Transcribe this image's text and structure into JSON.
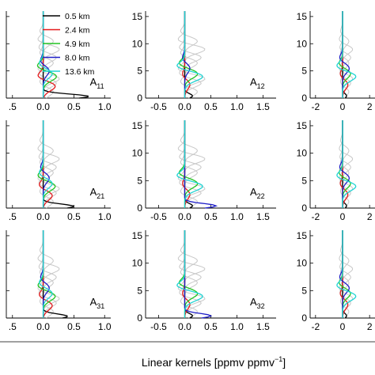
{
  "figure": {
    "xlabel": "Linear kernels [ppmv ppmv",
    "xlabel_sup": "−1",
    "xlabel_end": "]",
    "ylabel_note": ""
  },
  "legend": {
    "entries": [
      {
        "label": "0.5 km",
        "color": "#000000"
      },
      {
        "label": "2.4 km",
        "color": "#e41a1c"
      },
      {
        "label": "4.9 km",
        "color": "#22c422"
      },
      {
        "label": "8.0 km",
        "color": "#1f1fc8"
      },
      {
        "label": "13.6 km",
        "color": "#20d4d4"
      }
    ],
    "faint_color": "#c8c8c8"
  },
  "chart_data": [
    {
      "type": "line",
      "panel": "A11",
      "label_main": "A",
      "label_sub": "11",
      "xlim": [
        -0.6,
        1.1
      ],
      "ylim": [
        0,
        16
      ],
      "xticks": [
        ".5",
        "0.0",
        "0.5",
        "1.0"
      ],
      "yticks": [
        "0",
        "5",
        "10",
        "15"
      ],
      "show_yticks": false,
      "series": [
        {
          "name": "0.5 km",
          "peak_x": 0.75,
          "peak_y": 0.3
        },
        {
          "name": "2.4 km",
          "peak_x": 0.2,
          "peak_y": 2.2
        },
        {
          "name": "4.9 km",
          "peak_x": 0.22,
          "peak_y": 4.0
        },
        {
          "name": "8.0 km",
          "peak_x": 0.1,
          "peak_y": 5.0
        },
        {
          "name": "13.6 km",
          "peak_x": 0.15,
          "peak_y": 4.5
        }
      ]
    },
    {
      "type": "line",
      "panel": "A12",
      "label_main": "A",
      "label_sub": "12",
      "xlim": [
        -0.75,
        1.75
      ],
      "ylim": [
        0,
        16
      ],
      "xticks": [
        "-0.5",
        "0.0",
        "0.5",
        "1.0",
        "1.5"
      ],
      "yticks": [
        "0",
        "5",
        "10",
        "15"
      ],
      "show_yticks": true,
      "series": [
        {
          "name": "0.5 km",
          "peak_x": 0.15,
          "peak_y": 0.4
        },
        {
          "name": "2.4 km",
          "peak_x": 0.1,
          "peak_y": 2.5
        },
        {
          "name": "4.9 km",
          "peak_x": 0.25,
          "peak_y": 4.5
        },
        {
          "name": "8.0 km",
          "peak_x": 0.1,
          "peak_y": 5.5
        },
        {
          "name": "13.6 km",
          "peak_x": 0.35,
          "peak_y": 4.0
        }
      ]
    },
    {
      "type": "line",
      "panel": "A13",
      "label_main": "",
      "label_sub": "",
      "xlim": [
        -2.4,
        2.4
      ],
      "ylim": [
        0,
        16
      ],
      "xticks": [
        "-2",
        "0",
        "2"
      ],
      "yticks": [
        "0",
        "5",
        "10",
        "15"
      ],
      "show_yticks": true,
      "series": [
        {
          "name": "0.5 km",
          "peak_x": 0.3,
          "peak_y": 0.4
        },
        {
          "name": "2.4 km",
          "peak_x": 0.4,
          "peak_y": 2.5
        },
        {
          "name": "4.9 km",
          "peak_x": 0.6,
          "peak_y": 4.5
        },
        {
          "name": "8.0 km",
          "peak_x": 0.5,
          "peak_y": 5.5
        },
        {
          "name": "13.6 km",
          "peak_x": 1.0,
          "peak_y": 4.0
        }
      ]
    },
    {
      "type": "line",
      "panel": "A21",
      "label_main": "A",
      "label_sub": "21",
      "xlim": [
        -0.6,
        1.1
      ],
      "ylim": [
        0,
        16
      ],
      "xticks": [
        ".5",
        "0.0",
        "0.5",
        "1.0"
      ],
      "yticks": [
        "0",
        "5",
        "10",
        "15"
      ],
      "show_yticks": false,
      "series": [
        {
          "name": "0.5 km",
          "peak_x": 0.5,
          "peak_y": 0.3
        },
        {
          "name": "2.4 km",
          "peak_x": 0.15,
          "peak_y": 2.3
        },
        {
          "name": "4.9 km",
          "peak_x": 0.2,
          "peak_y": 4.0
        },
        {
          "name": "8.0 km",
          "peak_x": 0.1,
          "peak_y": 5.5
        },
        {
          "name": "13.6 km",
          "peak_x": 0.15,
          "peak_y": 4.5
        }
      ]
    },
    {
      "type": "line",
      "panel": "A22",
      "label_main": "A",
      "label_sub": "22",
      "xlim": [
        -0.75,
        1.75
      ],
      "ylim": [
        0,
        16
      ],
      "xticks": [
        "-0.5",
        "0.0",
        "0.5",
        "1.0",
        "1.5"
      ],
      "yticks": [
        "0",
        "5",
        "10",
        "15"
      ],
      "show_yticks": true,
      "series": [
        {
          "name": "0.5 km",
          "peak_x": 0.15,
          "peak_y": 0.4
        },
        {
          "name": "2.4 km",
          "peak_x": 0.1,
          "peak_y": 2.5
        },
        {
          "name": "4.9 km",
          "peak_x": 0.25,
          "peak_y": 4.5
        },
        {
          "name": "8.0 km",
          "peak_x": 0.6,
          "peak_y": 0.4
        },
        {
          "name": "13.6 km",
          "peak_x": 0.35,
          "peak_y": 4.0
        }
      ]
    },
    {
      "type": "line",
      "panel": "A23",
      "label_main": "",
      "label_sub": "",
      "xlim": [
        -2.4,
        2.4
      ],
      "ylim": [
        0,
        16
      ],
      "xticks": [
        "-2",
        "0",
        "2"
      ],
      "yticks": [
        "0",
        "5",
        "10",
        "15"
      ],
      "show_yticks": true,
      "series": [
        {
          "name": "0.5 km",
          "peak_x": 0.3,
          "peak_y": 0.4
        },
        {
          "name": "2.4 km",
          "peak_x": 0.4,
          "peak_y": 2.5
        },
        {
          "name": "4.9 km",
          "peak_x": 0.6,
          "peak_y": 4.5
        },
        {
          "name": "8.0 km",
          "peak_x": 0.5,
          "peak_y": 5.5
        },
        {
          "name": "13.6 km",
          "peak_x": 1.0,
          "peak_y": 4.0
        }
      ]
    },
    {
      "type": "line",
      "panel": "A31",
      "label_main": "A",
      "label_sub": "31",
      "xlim": [
        -0.6,
        1.1
      ],
      "ylim": [
        0,
        16
      ],
      "xticks": [
        ".5",
        "0.0",
        "0.5",
        "1.0"
      ],
      "yticks": [
        "0",
        "5",
        "10",
        "15"
      ],
      "show_yticks": false,
      "series": [
        {
          "name": "0.5 km",
          "peak_x": 0.4,
          "peak_y": 0.3
        },
        {
          "name": "2.4 km",
          "peak_x": 0.15,
          "peak_y": 2.3
        },
        {
          "name": "4.9 km",
          "peak_x": 0.2,
          "peak_y": 4.0
        },
        {
          "name": "8.0 km",
          "peak_x": 0.1,
          "peak_y": 5.5
        },
        {
          "name": "13.6 km",
          "peak_x": 0.15,
          "peak_y": 4.5
        }
      ]
    },
    {
      "type": "line",
      "panel": "A32",
      "label_main": "A",
      "label_sub": "32",
      "xlim": [
        -0.75,
        1.75
      ],
      "ylim": [
        0,
        16
      ],
      "xticks": [
        "-0.5",
        "0.0",
        "0.5",
        "1.0",
        "1.5"
      ],
      "yticks": [
        "0",
        "5",
        "10",
        "15"
      ],
      "show_yticks": true,
      "series": [
        {
          "name": "0.5 km",
          "peak_x": 0.15,
          "peak_y": 0.4
        },
        {
          "name": "2.4 km",
          "peak_x": 0.1,
          "peak_y": 2.5
        },
        {
          "name": "4.9 km",
          "peak_x": 0.25,
          "peak_y": 4.5
        },
        {
          "name": "8.0 km",
          "peak_x": 0.5,
          "peak_y": 0.4
        },
        {
          "name": "13.6 km",
          "peak_x": 0.35,
          "peak_y": 4.0
        }
      ]
    },
    {
      "type": "line",
      "panel": "A33",
      "label_main": "",
      "label_sub": "",
      "xlim": [
        -2.4,
        2.4
      ],
      "ylim": [
        0,
        16
      ],
      "xticks": [
        "-2",
        "0",
        "2"
      ],
      "yticks": [
        "0",
        "5",
        "10",
        "15"
      ],
      "show_yticks": true,
      "series": [
        {
          "name": "0.5 km",
          "peak_x": 0.3,
          "peak_y": 0.4
        },
        {
          "name": "2.4 km",
          "peak_x": 0.4,
          "peak_y": 2.5
        },
        {
          "name": "4.9 km",
          "peak_x": 0.6,
          "peak_y": 4.5
        },
        {
          "name": "8.0 km",
          "peak_x": 0.5,
          "peak_y": 5.5
        },
        {
          "name": "13.6 km",
          "peak_x": 1.0,
          "peak_y": 4.0
        }
      ]
    }
  ]
}
